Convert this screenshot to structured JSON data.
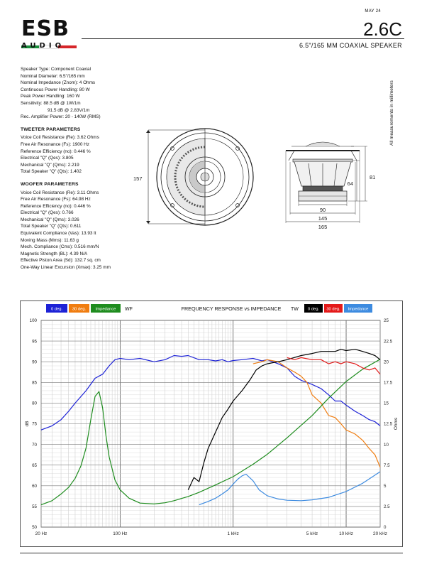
{
  "header": {
    "logo_main": "ESB",
    "logo_sub": "AUDIO",
    "logo_colors": [
      "#1a8f3c",
      "#ffffff",
      "#d6262a"
    ],
    "date": "MAY 24",
    "model": "2.6C",
    "subtitle": "6.5\"/165 MM COAXIAL SPEAKER"
  },
  "specs": {
    "general": [
      "Speaker Type: Component Coaxial",
      "Nominal Diameter: 6.5\"/165 mm",
      "Nominal Impedance (Znom): 4 Ohms",
      "Continuous Power Handling: 80 W",
      "Peak Power Handling: 160 W",
      "Sensitivity: 88.5 dB @ 1W/1m",
      "91.5 dB @ 2.83V/1m",
      "Rec. Amplifier Power: 20 - 140W (RMS)"
    ],
    "tweeter_title": "TWEETER PARAMETERS",
    "tweeter": [
      "Voice Coil Resistance (Re): 3.62 Ohms",
      "Free Air Resonance (Fs): 1900 Hz",
      "Reference Efficiency (no): 0.446 %",
      "Electrical \"Q\" (Qes): 3.805",
      "Mechanical \"Q\" (Qms): 2.219",
      "Total Speaker \"Q\" (Qts): 1.402"
    ],
    "woofer_title": "WOOFER PARAMETERS",
    "woofer": [
      "Voice Coil Resistance (Re): 3.11 Ohms",
      "Free Air Resonance (Fs): 64.98 Hz",
      "Reference Efficiency (no): 0.446 %",
      "Electrical \"Q\" (Qes): 0.766",
      "Mechanical \"Q\" (Qms): 3.026",
      "Total Speaker \"Q\" (Qts): 0.611",
      "Equivalent Compliance (Vas): 13.93 lt",
      "Moving Mass (Mms): 11.63 g",
      "Mech. Compliance (Cms): 0.516 mm/N",
      "Magnetic Strength (BL): 4.39 N/A",
      "Effective Piston Area (Sd): 132.7 sq. cm",
      "One-Way Linear Excursion (Xmax): 3.25 mm"
    ]
  },
  "drawing": {
    "note": "All measurements in millimeters",
    "dims": {
      "front_height": "157",
      "depth_total": "81",
      "depth_basket": "64",
      "d_inner": "90",
      "d_cutout": "145",
      "d_outer": "165"
    }
  },
  "chart_data": {
    "type": "line",
    "title": "FREQUENCY RESPONSE vs IMPEDANCE",
    "x_scale": "log",
    "xlim": [
      20,
      20000
    ],
    "x_ticks": [
      20,
      100,
      1000,
      5000,
      10000,
      20000
    ],
    "x_tick_labels": [
      "20 Hz",
      "100 Hz",
      "1 kHz",
      "5 kHz",
      "10 kHz",
      "20 kHz"
    ],
    "ylabel": "dB",
    "ylim": [
      50,
      100
    ],
    "y_ticks": [
      50,
      55,
      60,
      65,
      70,
      75,
      80,
      85,
      90,
      95,
      100
    ],
    "y2label": "Ohms",
    "y2lim": [
      0,
      25
    ],
    "y2_ticks": [
      "0",
      "2.5",
      "5",
      "7.5",
      "10",
      "12.5",
      "15",
      "17.5",
      "20",
      "22.5",
      "25"
    ],
    "grid": true,
    "legend_wf_label": "WF",
    "legend_tw_label": "TW",
    "legend_wf": [
      {
        "name": "0 deg.",
        "color": "#1d22d6"
      },
      {
        "name": "30 deg.",
        "color": "#f07d10"
      },
      {
        "name": "Impedance",
        "color": "#1e8c1e"
      }
    ],
    "legend_tw": [
      {
        "name": "0 deg.",
        "color": "#000000"
      },
      {
        "name": "30 deg.",
        "color": "#e41a1a"
      },
      {
        "name": "Impedance",
        "color": "#3d8be0"
      }
    ],
    "series": [
      {
        "name": "WF 0 deg.",
        "color": "#1d22d6",
        "axis": "left",
        "x": [
          20,
          25,
          30,
          35,
          40,
          50,
          60,
          70,
          80,
          90,
          100,
          120,
          150,
          200,
          250,
          300,
          350,
          400,
          500,
          600,
          700,
          800,
          900,
          1000,
          1200,
          1500,
          1800,
          2000,
          2500,
          3000,
          3500,
          4000,
          4500,
          5000,
          6000,
          7000,
          8000,
          9000,
          10000,
          12000,
          14000,
          16000,
          18000,
          20000
        ],
        "y": [
          73.5,
          74.5,
          76,
          78,
          80,
          83,
          86,
          87,
          89,
          90.5,
          90.8,
          90.5,
          90.8,
          90,
          90.5,
          91.5,
          91.3,
          91.5,
          90.5,
          90.5,
          90.2,
          90.5,
          90,
          90.3,
          90.5,
          90.8,
          90.2,
          90.5,
          89.5,
          88.5,
          86.5,
          85.5,
          85,
          84.5,
          83.5,
          82,
          80.5,
          80.5,
          79.5,
          78,
          77,
          76,
          75.5,
          74.5
        ]
      },
      {
        "name": "WF 30 deg.",
        "color": "#f07d10",
        "axis": "left",
        "x": [
          1500,
          1800,
          2000,
          2500,
          3000,
          3500,
          4000,
          4500,
          5000,
          6000,
          7000,
          8000,
          9000,
          10000,
          12000,
          14000,
          16000,
          18000,
          20000
        ],
        "y": [
          89.5,
          90,
          90.5,
          90,
          88.5,
          87.5,
          86.5,
          85,
          82,
          80,
          77,
          76.5,
          75,
          73.5,
          72.5,
          71,
          69,
          67.5,
          64.5
        ]
      },
      {
        "name": "WF Impedance",
        "color": "#1e8c1e",
        "axis": "right",
        "x": [
          20,
          25,
          30,
          35,
          40,
          45,
          50,
          55,
          60,
          65,
          70,
          75,
          80,
          90,
          100,
          120,
          150,
          200,
          250,
          300,
          400,
          500,
          700,
          1000,
          1500,
          2000,
          3000,
          5000,
          7000,
          10000,
          14000,
          20000
        ],
        "y": [
          2.7,
          3.2,
          4,
          4.8,
          5.9,
          7.4,
          9.6,
          13,
          15.8,
          16.4,
          14.4,
          11,
          8.5,
          5.7,
          4.5,
          3.5,
          2.9,
          2.8,
          2.95,
          3.2,
          3.7,
          4.2,
          5.1,
          6.1,
          7.6,
          8.8,
          10.8,
          13.5,
          15.6,
          17.6,
          19.1,
          20.3
        ]
      },
      {
        "name": "TW 0 deg.",
        "color": "#000000",
        "axis": "left",
        "x": [
          400,
          450,
          500,
          550,
          600,
          700,
          800,
          900,
          1000,
          1200,
          1400,
          1600,
          1800,
          2000,
          2500,
          3000,
          4000,
          5000,
          6000,
          7000,
          8000,
          9000,
          10000,
          12000,
          14000,
          16000,
          18000,
          20000
        ],
        "y": [
          59,
          62,
          61,
          65.5,
          69,
          73,
          76.5,
          78.5,
          80.5,
          83,
          85.5,
          88,
          89,
          89.5,
          90,
          90.5,
          91.5,
          92,
          92.5,
          92.5,
          92.5,
          93,
          92.7,
          93,
          92.5,
          92,
          91.5,
          90.5
        ]
      },
      {
        "name": "TW 30 deg.",
        "color": "#e41a1a",
        "axis": "left",
        "x": [
          3000,
          3500,
          4000,
          5000,
          6000,
          7000,
          8000,
          9000,
          10000,
          12000,
          14000,
          16000,
          18000,
          20000
        ],
        "y": [
          91,
          90.5,
          91,
          90.5,
          90.5,
          89.5,
          90,
          89.5,
          90,
          89.5,
          88.5,
          88,
          88.5,
          87
        ]
      },
      {
        "name": "TW Impedance",
        "color": "#3d8be0",
        "axis": "right",
        "x": [
          500,
          600,
          700,
          800,
          900,
          1000,
          1100,
          1200,
          1300,
          1500,
          1700,
          2000,
          2500,
          3000,
          4000,
          5000,
          7000,
          10000,
          14000,
          20000
        ],
        "y": [
          2.7,
          3.1,
          3.5,
          4,
          4.5,
          5.2,
          5.8,
          6.2,
          6.4,
          5.6,
          4.5,
          3.8,
          3.4,
          3.25,
          3.2,
          3.3,
          3.6,
          4.3,
          5.3,
          6.7
        ]
      }
    ]
  }
}
